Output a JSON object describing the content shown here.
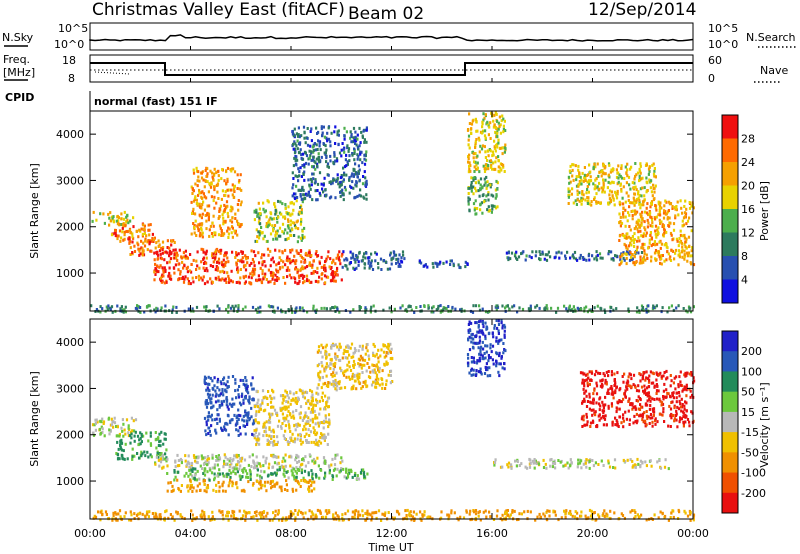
{
  "header": {
    "title": "Christmas Valley East (fitACF)",
    "beam": "Beam 02",
    "date": "12/Sep/2014",
    "cpid_label": "CPID",
    "cpid_value": "normal (fast) 151 IF"
  },
  "strips": {
    "noise": {
      "left_label": "N.Sky",
      "right_label": "N.Search",
      "left_ticks": [
        "10^5",
        "10^0"
      ],
      "right_ticks": [
        "10^5",
        "10^0"
      ]
    },
    "freq": {
      "left_label_1": "Freq.",
      "left_label_2": "[MHz]",
      "right_label": "Nave",
      "left_ticks": [
        "18",
        "8"
      ],
      "right_ticks": [
        "60",
        "0"
      ]
    }
  },
  "chart_data": [
    {
      "type": "heatmap",
      "name": "power",
      "ylabel": "Slant Range [km]",
      "ylim": [
        180,
        4500
      ],
      "y_ticks": [
        1000,
        2000,
        3000,
        4000
      ],
      "colorbar": {
        "label": "Power [dB]",
        "ticks": [
          "4",
          "8",
          "12",
          "16",
          "20",
          "24",
          "28"
        ],
        "colors": [
          "#1010e0",
          "#2850b0",
          "#2d7a5e",
          "#4cae4c",
          "#e8d200",
          "#f5a000",
          "#ff6a00",
          "#f01010"
        ]
      },
      "regions": [
        {
          "t0": 0.0,
          "t1": 1.8,
          "r0": 2050,
          "r1": 2350,
          "level": 0.55
        },
        {
          "t0": 0.8,
          "t1": 2.5,
          "r0": 1700,
          "r1": 2100,
          "level": 0.8
        },
        {
          "t0": 1.5,
          "t1": 3.5,
          "r0": 1400,
          "r1": 1800,
          "level": 0.85
        },
        {
          "t0": 2.5,
          "t1": 10.0,
          "r0": 800,
          "r1": 1550,
          "level": 0.92
        },
        {
          "t0": 4.0,
          "t1": 6.0,
          "r0": 1800,
          "r1": 3300,
          "level": 0.75
        },
        {
          "t0": 6.5,
          "t1": 8.5,
          "r0": 1700,
          "r1": 2600,
          "level": 0.5
        },
        {
          "t0": 8.0,
          "t1": 11.0,
          "r0": 2600,
          "r1": 4200,
          "level": 0.2
        },
        {
          "t0": 10.0,
          "t1": 12.5,
          "r0": 1100,
          "r1": 1500,
          "level": 0.18
        },
        {
          "t0": 13.0,
          "t1": 15.0,
          "r0": 1150,
          "r1": 1300,
          "level": 0.15
        },
        {
          "t0": 15.0,
          "t1": 16.5,
          "r0": 3200,
          "r1": 4500,
          "level": 0.6
        },
        {
          "t0": 15.0,
          "t1": 16.2,
          "r0": 2300,
          "r1": 3100,
          "level": 0.4
        },
        {
          "t0": 16.5,
          "t1": 22.0,
          "r0": 1300,
          "r1": 1500,
          "level": 0.2
        },
        {
          "t0": 19.0,
          "t1": 22.5,
          "r0": 2500,
          "r1": 3400,
          "level": 0.6
        },
        {
          "t0": 21.0,
          "t1": 24.0,
          "r0": 1200,
          "r1": 2600,
          "level": 0.7
        },
        {
          "t0": 0.0,
          "t1": 24.0,
          "r0": 180,
          "r1": 330,
          "level": 0.3
        }
      ]
    },
    {
      "type": "heatmap",
      "name": "velocity",
      "ylabel": "Slant Range [km]",
      "ylim": [
        180,
        4500
      ],
      "y_ticks": [
        1000,
        2000,
        3000,
        4000
      ],
      "colorbar": {
        "label": "Velocity [m s⁻¹]",
        "ticks": [
          "200",
          "100",
          "50",
          "15",
          "-15",
          "-50",
          "-100",
          "-200"
        ],
        "colors": [
          "#2020c8",
          "#2858b8",
          "#228b5a",
          "#6cc83c",
          "#b8b8b8",
          "#f0c000",
          "#f09000",
          "#f05000",
          "#e81010"
        ]
      },
      "regions": [
        {
          "t0": 0.0,
          "t1": 1.8,
          "r0": 2000,
          "r1": 2400,
          "value": 0
        },
        {
          "t0": 1.0,
          "t1": 3.0,
          "r0": 1500,
          "r1": 2100,
          "value": 60
        },
        {
          "t0": 2.5,
          "t1": 10.0,
          "r0": 1300,
          "r1": 1600,
          "value": 0
        },
        {
          "t0": 3.0,
          "t1": 11.0,
          "r0": 1050,
          "r1": 1300,
          "value": 40
        },
        {
          "t0": 3.0,
          "t1": 9.0,
          "r0": 800,
          "r1": 1050,
          "value": -60
        },
        {
          "t0": 4.5,
          "t1": 6.5,
          "r0": 2000,
          "r1": 3300,
          "value": 180
        },
        {
          "t0": 6.5,
          "t1": 9.5,
          "r0": 1800,
          "r1": 3000,
          "value": -20
        },
        {
          "t0": 9.0,
          "t1": 12.0,
          "r0": 3000,
          "r1": 4000,
          "value": -30
        },
        {
          "t0": 15.0,
          "t1": 16.5,
          "r0": 3300,
          "r1": 4500,
          "value": 200
        },
        {
          "t0": 16.0,
          "t1": 23.0,
          "r0": 1300,
          "r1": 1500,
          "value": 0
        },
        {
          "t0": 19.5,
          "t1": 24.0,
          "r0": 2200,
          "r1": 3400,
          "value": -220
        },
        {
          "t0": 0.0,
          "t1": 24.0,
          "r0": 180,
          "r1": 400,
          "value": -60
        }
      ]
    }
  ],
  "x_axis": {
    "label": "Time UT",
    "ticks": [
      "00:00",
      "04:00",
      "08:00",
      "12:00",
      "16:00",
      "20:00",
      "00:00"
    ]
  }
}
